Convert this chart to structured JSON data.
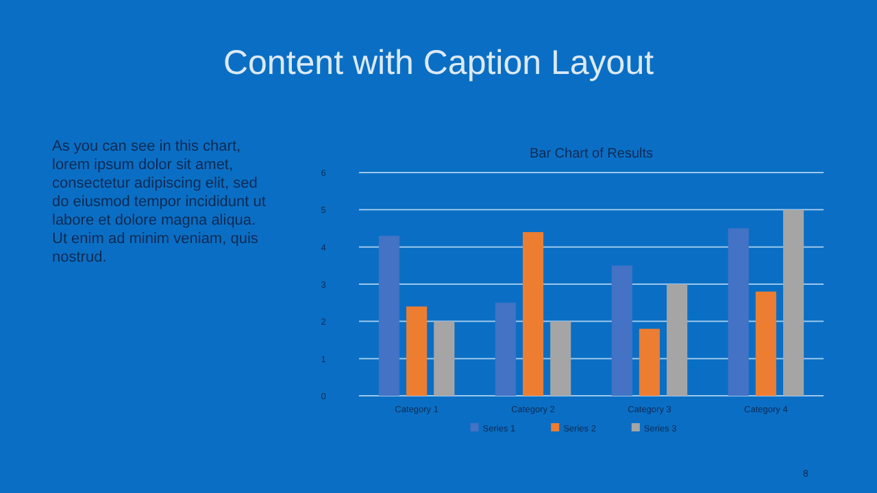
{
  "chart_data": {
    "type": "bar",
    "title": "Bar Chart of Results",
    "annotations": [
      "Content with Caption Layout",
      "As you can see in this chart, lorem ipsum dolor sit amet, consectetur adipiscing elit, sed do eiusmod tempor incididunt ut labore et dolore magna aliqua. Ut enim ad minim veniam, quis nostrud.",
      "8"
    ],
    "categories": [
      "Category 1",
      "Category 2",
      "Category 3",
      "Category 4"
    ],
    "series": [
      {
        "name": "Series 1",
        "color": "#4472c4",
        "values": [
          4.3,
          2.5,
          3.5,
          4.5
        ]
      },
      {
        "name": "Series 2",
        "color": "#ed7d31",
        "values": [
          2.4,
          4.4,
          1.8,
          2.8
        ]
      },
      {
        "name": "Series 3",
        "color": "#a5a5a5",
        "values": [
          2,
          2,
          3,
          5
        ]
      }
    ],
    "ylim": [
      0,
      6
    ],
    "yticks": [
      0,
      1,
      2,
      3,
      4,
      5,
      6
    ],
    "grid": "y",
    "legend": "bottom"
  }
}
